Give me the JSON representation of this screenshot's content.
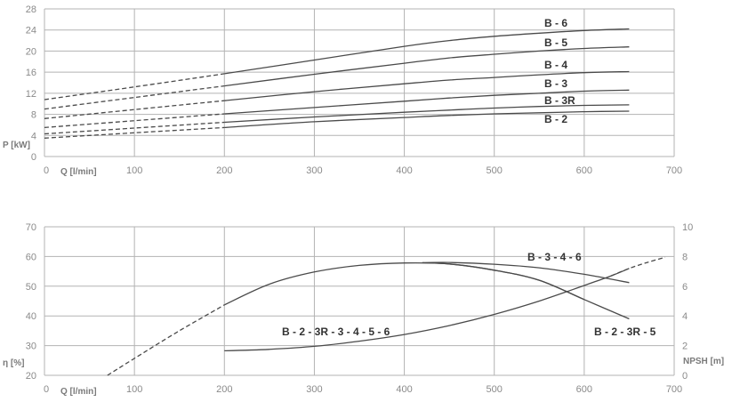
{
  "chart_data": [
    {
      "type": "line",
      "xlabel": "Q [l/min]",
      "ylabel": "P [kW]",
      "xlim": [
        0,
        700
      ],
      "ylim": [
        0,
        28
      ],
      "xticks": [
        0,
        100,
        200,
        300,
        400,
        500,
        600,
        700
      ],
      "yticks": [
        0,
        4,
        8,
        12,
        16,
        20,
        24,
        28
      ],
      "dashed_below_x": 200,
      "grid": true,
      "series": [
        {
          "name": "B - 6",
          "x": [
            0,
            100,
            200,
            300,
            400,
            450,
            500,
            550,
            600,
            650
          ],
          "y": [
            10.8,
            13.2,
            15.7,
            18.3,
            20.9,
            22.0,
            22.8,
            23.4,
            23.9,
            24.2
          ]
        },
        {
          "name": "B - 5",
          "x": [
            0,
            100,
            200,
            300,
            400,
            450,
            500,
            550,
            600,
            650
          ],
          "y": [
            9.0,
            11.2,
            13.4,
            15.6,
            17.7,
            18.7,
            19.4,
            20.0,
            20.5,
            20.8
          ]
        },
        {
          "name": "B - 4",
          "x": [
            0,
            100,
            200,
            300,
            400,
            450,
            500,
            550,
            600,
            650
          ],
          "y": [
            7.2,
            8.9,
            10.6,
            12.3,
            13.8,
            14.5,
            15.0,
            15.5,
            15.9,
            16.1
          ]
        },
        {
          "name": "B - 3",
          "x": [
            0,
            100,
            200,
            300,
            400,
            450,
            500,
            550,
            600,
            650
          ],
          "y": [
            5.5,
            6.8,
            8.1,
            9.3,
            10.5,
            11.1,
            11.6,
            12.0,
            12.4,
            12.6
          ]
        },
        {
          "name": "B - 3R",
          "x": [
            0,
            100,
            200,
            300,
            400,
            450,
            500,
            550,
            600,
            650
          ],
          "y": [
            4.3,
            5.4,
            6.5,
            7.5,
            8.4,
            8.8,
            9.2,
            9.5,
            9.7,
            9.8
          ]
        },
        {
          "name": "B - 2",
          "x": [
            0,
            100,
            200,
            300,
            400,
            450,
            500,
            550,
            600,
            650
          ],
          "y": [
            3.5,
            4.5,
            5.5,
            6.6,
            7.4,
            7.8,
            8.1,
            8.3,
            8.5,
            8.6
          ]
        }
      ]
    },
    {
      "type": "line",
      "xlabel": "Q [l/min]",
      "ylabel": "η [%]",
      "y2label": "NPSH [m]",
      "xlim": [
        0,
        700
      ],
      "ylim": [
        20,
        70
      ],
      "y2lim": [
        0,
        10
      ],
      "xticks": [
        0,
        100,
        200,
        300,
        400,
        500,
        600,
        700
      ],
      "yticks": [
        20,
        30,
        40,
        50,
        60,
        70
      ],
      "y2ticks": [
        0,
        2,
        4,
        6,
        8,
        10
      ],
      "dashed_below_x": 200,
      "grid": true,
      "series": [
        {
          "name": "B - 2 - 3R - 3 - 4 - 5 - 6",
          "axis": "left",
          "x": [
            70,
            100,
            150,
            200,
            250,
            300,
            350,
            400,
            450,
            500,
            550,
            600
          ],
          "y": [
            20,
            25.7,
            35.0,
            43.7,
            50.7,
            54.8,
            57.0,
            57.8,
            57.5,
            55.4,
            52.0,
            45.5
          ]
        },
        {
          "name": "B - 3 - 4 - 6",
          "axis": "left",
          "x": [
            420,
            450,
            500,
            550,
            600,
            650
          ],
          "y": [
            57.9,
            58.0,
            57.4,
            56.2,
            54.0,
            51.2
          ]
        },
        {
          "name": "B - 2 - 3R - 5",
          "axis": "left",
          "x": [
            420,
            450,
            500,
            550,
            600,
            650
          ],
          "y": [
            57.9,
            57.5,
            55.4,
            52.0,
            45.5,
            39.0
          ]
        },
        {
          "name": "NPSH",
          "axis": "right",
          "x": [
            200,
            250,
            300,
            350,
            400,
            450,
            500,
            550,
            600,
            630,
            650
          ],
          "y": [
            1.65,
            1.75,
            1.95,
            2.3,
            2.75,
            3.35,
            4.1,
            5.0,
            6.05,
            6.7,
            7.2
          ]
        },
        {
          "name": "NPSH",
          "axis": "right",
          "x": [
            630,
            650,
            670,
            690
          ],
          "y": [
            6.7,
            7.2,
            7.6,
            7.95
          ]
        }
      ]
    }
  ]
}
